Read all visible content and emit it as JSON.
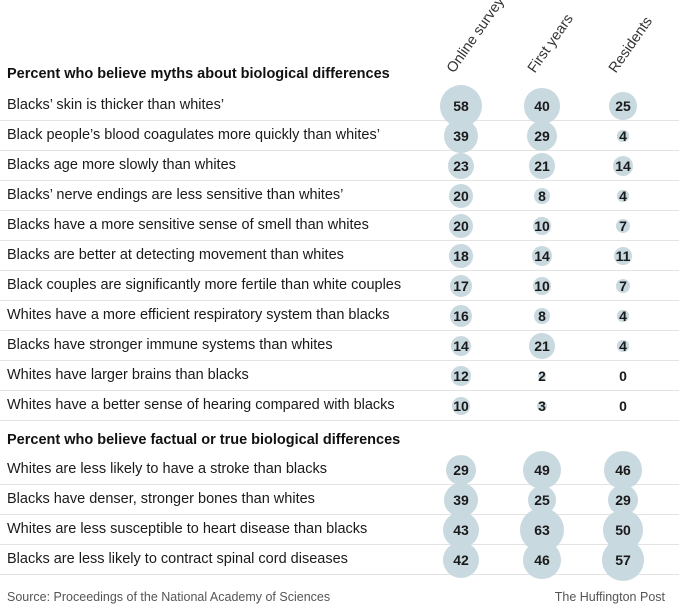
{
  "columns": [
    "Online survey",
    "First years",
    "Residents"
  ],
  "sections": [
    {
      "title": "Percent who believe myths about biological differences",
      "rows": [
        {
          "label": "Blacks’ skin is thicker than whites’",
          "values": [
            58,
            40,
            25
          ]
        },
        {
          "label": "Black people’s blood coagulates more quickly than whites’",
          "values": [
            39,
            29,
            4
          ]
        },
        {
          "label": "Blacks age more slowly than whites",
          "values": [
            23,
            21,
            14
          ]
        },
        {
          "label": "Blacks’ nerve endings are less sensitive than whites’",
          "values": [
            20,
            8,
            4
          ]
        },
        {
          "label": "Blacks have a more sensitive sense of smell than whites",
          "values": [
            20,
            10,
            7
          ]
        },
        {
          "label": "Blacks are better at detecting movement than whites",
          "values": [
            18,
            14,
            11
          ]
        },
        {
          "label": "Black couples are significantly more fertile than white couples",
          "values": [
            17,
            10,
            7
          ]
        },
        {
          "label": "Whites have a more efficient respiratory system than blacks",
          "values": [
            16,
            8,
            4
          ]
        },
        {
          "label": "Blacks have stronger immune systems than whites",
          "values": [
            14,
            21,
            4
          ]
        },
        {
          "label": "Whites have larger brains than blacks",
          "values": [
            12,
            2,
            0
          ]
        },
        {
          "label": "Whites have a better sense of hearing compared with blacks",
          "values": [
            10,
            3,
            0
          ]
        }
      ]
    },
    {
      "title": "Percent who believe factual or true biological differences",
      "rows": [
        {
          "label": "Whites are less likely to have a stroke than blacks",
          "values": [
            29,
            49,
            46
          ]
        },
        {
          "label": "Blacks have denser, stronger bones than whites",
          "values": [
            39,
            25,
            29
          ]
        },
        {
          "label": "Whites are less susceptible to heart disease than blacks",
          "values": [
            43,
            63,
            50
          ]
        },
        {
          "label": "Blacks are less likely to contract spinal cord diseases",
          "values": [
            42,
            46,
            57
          ]
        }
      ]
    }
  ],
  "footer": {
    "source": "Source: Proceedings of the National Academy of Sciences",
    "credit": "The Huffington Post"
  },
  "colors": {
    "bubble": "#c9d9e0"
  },
  "chart_data": {
    "type": "table",
    "categories": [
      "Online survey",
      "First years",
      "Residents"
    ],
    "groups": [
      {
        "title": "Percent who believe myths about biological differences",
        "rows": [
          {
            "label": "Blacks’ skin is thicker than whites’",
            "values": [
              58,
              40,
              25
            ]
          },
          {
            "label": "Black people’s blood coagulates more quickly than whites’",
            "values": [
              39,
              29,
              4
            ]
          },
          {
            "label": "Blacks age more slowly than whites",
            "values": [
              23,
              21,
              14
            ]
          },
          {
            "label": "Blacks’ nerve endings are less sensitive than whites’",
            "values": [
              20,
              8,
              4
            ]
          },
          {
            "label": "Blacks have a more sensitive sense of smell than whites",
            "values": [
              20,
              10,
              7
            ]
          },
          {
            "label": "Blacks are better at detecting movement than whites",
            "values": [
              18,
              14,
              11
            ]
          },
          {
            "label": "Black couples are significantly more fertile than white couples",
            "values": [
              17,
              10,
              7
            ]
          },
          {
            "label": "Whites have a more efficient respiratory system than blacks",
            "values": [
              16,
              8,
              4
            ]
          },
          {
            "label": "Blacks have stronger immune systems than whites",
            "values": [
              14,
              21,
              4
            ]
          },
          {
            "label": "Whites have larger brains than blacks",
            "values": [
              12,
              2,
              0
            ]
          },
          {
            "label": "Whites have a better sense of hearing compared with blacks",
            "values": [
              10,
              3,
              0
            ]
          }
        ]
      },
      {
        "title": "Percent who believe factual or true biological differences",
        "rows": [
          {
            "label": "Whites are less likely to have a stroke than blacks",
            "values": [
              29,
              49,
              46
            ]
          },
          {
            "label": "Blacks have denser, stronger bones than whites",
            "values": [
              39,
              25,
              29
            ]
          },
          {
            "label": "Whites are less susceptible to heart disease than blacks",
            "values": [
              43,
              63,
              50
            ]
          },
          {
            "label": "Blacks are less likely to contract spinal cord diseases",
            "values": [
              42,
              46,
              57
            ]
          }
        ]
      }
    ]
  }
}
